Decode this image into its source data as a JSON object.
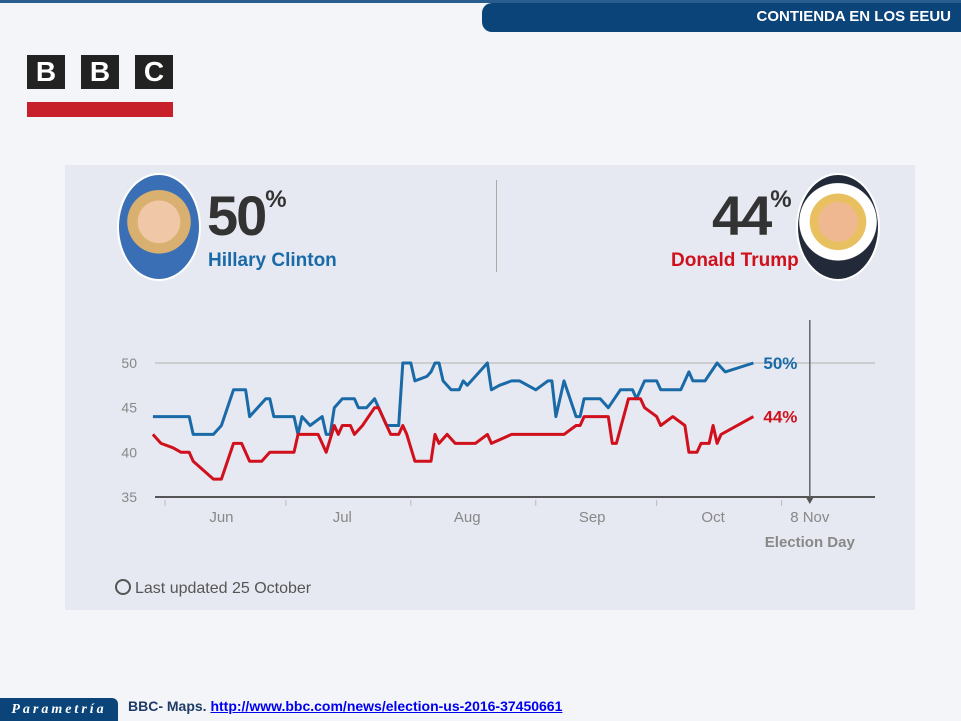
{
  "header": {
    "title": "CONTIENDA EN LOS EEUU"
  },
  "logo": {
    "text": "BBC",
    "letters": [
      "B",
      "B",
      "C"
    ],
    "color": "#c8202a"
  },
  "candidates": [
    {
      "name": "Hillary Clinton",
      "percent": "50",
      "unit": "%",
      "color": "#1a6aa8"
    },
    {
      "name": "Donald Trump",
      "percent": "44",
      "unit": "%",
      "color": "#d0101c"
    }
  ],
  "updated": "Last updated 25 October",
  "footer": {
    "brand": "Parametría",
    "source_label": "BBC- Maps.",
    "source_link": "http://www.bbc.com/news/election-us-2016-37450661"
  },
  "chart_data": {
    "type": "line",
    "title": "",
    "xlabel": "",
    "ylabel": "",
    "ylim": [
      35,
      50
    ],
    "yticks": [
      50,
      45,
      40,
      35
    ],
    "xticks": [
      {
        "label": "Jun",
        "date": "2016-06-15"
      },
      {
        "label": "Jul",
        "date": "2016-07-15"
      },
      {
        "label": "Aug",
        "date": "2016-08-15"
      },
      {
        "label": "Sep",
        "date": "2016-09-15"
      },
      {
        "label": "Oct",
        "date": "2016-10-15"
      }
    ],
    "xlim": [
      "2016-05-29",
      "2016-11-25"
    ],
    "event": {
      "date": "2016-11-08",
      "label": "8 Nov",
      "sublabel": "Election Day"
    },
    "series": [
      {
        "name": "Hillary Clinton",
        "color": "#1a6aa8",
        "end_label": "50%",
        "points": [
          [
            "2016-05-29",
            44
          ],
          [
            "2016-06-07",
            44
          ],
          [
            "2016-06-08",
            42
          ],
          [
            "2016-06-13",
            42
          ],
          [
            "2016-06-15",
            43
          ],
          [
            "2016-06-18",
            47
          ],
          [
            "2016-06-21",
            47
          ],
          [
            "2016-06-22",
            44
          ],
          [
            "2016-06-26",
            46
          ],
          [
            "2016-06-27",
            46
          ],
          [
            "2016-06-28",
            44
          ],
          [
            "2016-07-03",
            44
          ],
          [
            "2016-07-04",
            42
          ],
          [
            "2016-07-05",
            44
          ],
          [
            "2016-07-07",
            43
          ],
          [
            "2016-07-10",
            44
          ],
          [
            "2016-07-11",
            42
          ],
          [
            "2016-07-12",
            42
          ],
          [
            "2016-07-13",
            45
          ],
          [
            "2016-07-15",
            46
          ],
          [
            "2016-07-18",
            46
          ],
          [
            "2016-07-19",
            45
          ],
          [
            "2016-07-21",
            45
          ],
          [
            "2016-07-23",
            46
          ],
          [
            "2016-07-24",
            45
          ],
          [
            "2016-07-26",
            43
          ],
          [
            "2016-07-29",
            43
          ],
          [
            "2016-07-30",
            50
          ],
          [
            "2016-08-01",
            50
          ],
          [
            "2016-08-02",
            48
          ],
          [
            "2016-08-05",
            48.5
          ],
          [
            "2016-08-06",
            49
          ],
          [
            "2016-08-07",
            50
          ],
          [
            "2016-08-08",
            50
          ],
          [
            "2016-08-09",
            48
          ],
          [
            "2016-08-11",
            47
          ],
          [
            "2016-08-13",
            47
          ],
          [
            "2016-08-14",
            48
          ],
          [
            "2016-08-15",
            47.5
          ],
          [
            "2016-08-16",
            48
          ],
          [
            "2016-08-20",
            50
          ],
          [
            "2016-08-21",
            47
          ],
          [
            "2016-08-23",
            47.5
          ],
          [
            "2016-08-26",
            48
          ],
          [
            "2016-08-28",
            48
          ],
          [
            "2016-09-01",
            47
          ],
          [
            "2016-09-04",
            48
          ],
          [
            "2016-09-05",
            48
          ],
          [
            "2016-09-06",
            44
          ],
          [
            "2016-09-08",
            48
          ],
          [
            "2016-09-11",
            44
          ],
          [
            "2016-09-12",
            44
          ],
          [
            "2016-09-13",
            46
          ],
          [
            "2016-09-17",
            46
          ],
          [
            "2016-09-19",
            45
          ],
          [
            "2016-09-22",
            47
          ],
          [
            "2016-09-25",
            47
          ],
          [
            "2016-09-26",
            46
          ],
          [
            "2016-09-28",
            48
          ],
          [
            "2016-10-01",
            48
          ],
          [
            "2016-10-02",
            47
          ],
          [
            "2016-10-07",
            47
          ],
          [
            "2016-10-09",
            49
          ],
          [
            "2016-10-10",
            48
          ],
          [
            "2016-10-13",
            48
          ],
          [
            "2016-10-16",
            50
          ],
          [
            "2016-10-18",
            49
          ],
          [
            "2016-10-25",
            50
          ]
        ]
      },
      {
        "name": "Donald Trump",
        "color": "#d0101c",
        "end_label": "44%",
        "points": [
          [
            "2016-05-29",
            42
          ],
          [
            "2016-05-31",
            41
          ],
          [
            "2016-06-03",
            40.5
          ],
          [
            "2016-06-05",
            40
          ],
          [
            "2016-06-07",
            40
          ],
          [
            "2016-06-08",
            39
          ],
          [
            "2016-06-13",
            37
          ],
          [
            "2016-06-15",
            37
          ],
          [
            "2016-06-18",
            41
          ],
          [
            "2016-06-20",
            41
          ],
          [
            "2016-06-22",
            39
          ],
          [
            "2016-06-25",
            39
          ],
          [
            "2016-06-27",
            40
          ],
          [
            "2016-07-03",
            40
          ],
          [
            "2016-07-04",
            42
          ],
          [
            "2016-07-09",
            42
          ],
          [
            "2016-07-11",
            40
          ],
          [
            "2016-07-13",
            43
          ],
          [
            "2016-07-14",
            42
          ],
          [
            "2016-07-15",
            43
          ],
          [
            "2016-07-17",
            43
          ],
          [
            "2016-07-18",
            42
          ],
          [
            "2016-07-20",
            43
          ],
          [
            "2016-07-23",
            45
          ],
          [
            "2016-07-24",
            45
          ],
          [
            "2016-07-25",
            44
          ],
          [
            "2016-07-27",
            42
          ],
          [
            "2016-07-29",
            42
          ],
          [
            "2016-07-30",
            43
          ],
          [
            "2016-07-31",
            42
          ],
          [
            "2016-08-02",
            39
          ],
          [
            "2016-08-06",
            39
          ],
          [
            "2016-08-07",
            42
          ],
          [
            "2016-08-08",
            41
          ],
          [
            "2016-08-10",
            42
          ],
          [
            "2016-08-12",
            41
          ],
          [
            "2016-08-17",
            41
          ],
          [
            "2016-08-20",
            42
          ],
          [
            "2016-08-21",
            41
          ],
          [
            "2016-08-26",
            42
          ],
          [
            "2016-09-08",
            42
          ],
          [
            "2016-09-11",
            43
          ],
          [
            "2016-09-12",
            43
          ],
          [
            "2016-09-13",
            44
          ],
          [
            "2016-09-19",
            44
          ],
          [
            "2016-09-20",
            41
          ],
          [
            "2016-09-21",
            41
          ],
          [
            "2016-09-24",
            46
          ],
          [
            "2016-09-27",
            46
          ],
          [
            "2016-09-28",
            45
          ],
          [
            "2016-10-01",
            44
          ],
          [
            "2016-10-02",
            43
          ],
          [
            "2016-10-05",
            44
          ],
          [
            "2016-10-08",
            43
          ],
          [
            "2016-10-09",
            40
          ],
          [
            "2016-10-11",
            40
          ],
          [
            "2016-10-12",
            41
          ],
          [
            "2016-10-14",
            41
          ],
          [
            "2016-10-15",
            43
          ],
          [
            "2016-10-16",
            41
          ],
          [
            "2016-10-17",
            42
          ],
          [
            "2016-10-25",
            44
          ]
        ]
      }
    ]
  }
}
